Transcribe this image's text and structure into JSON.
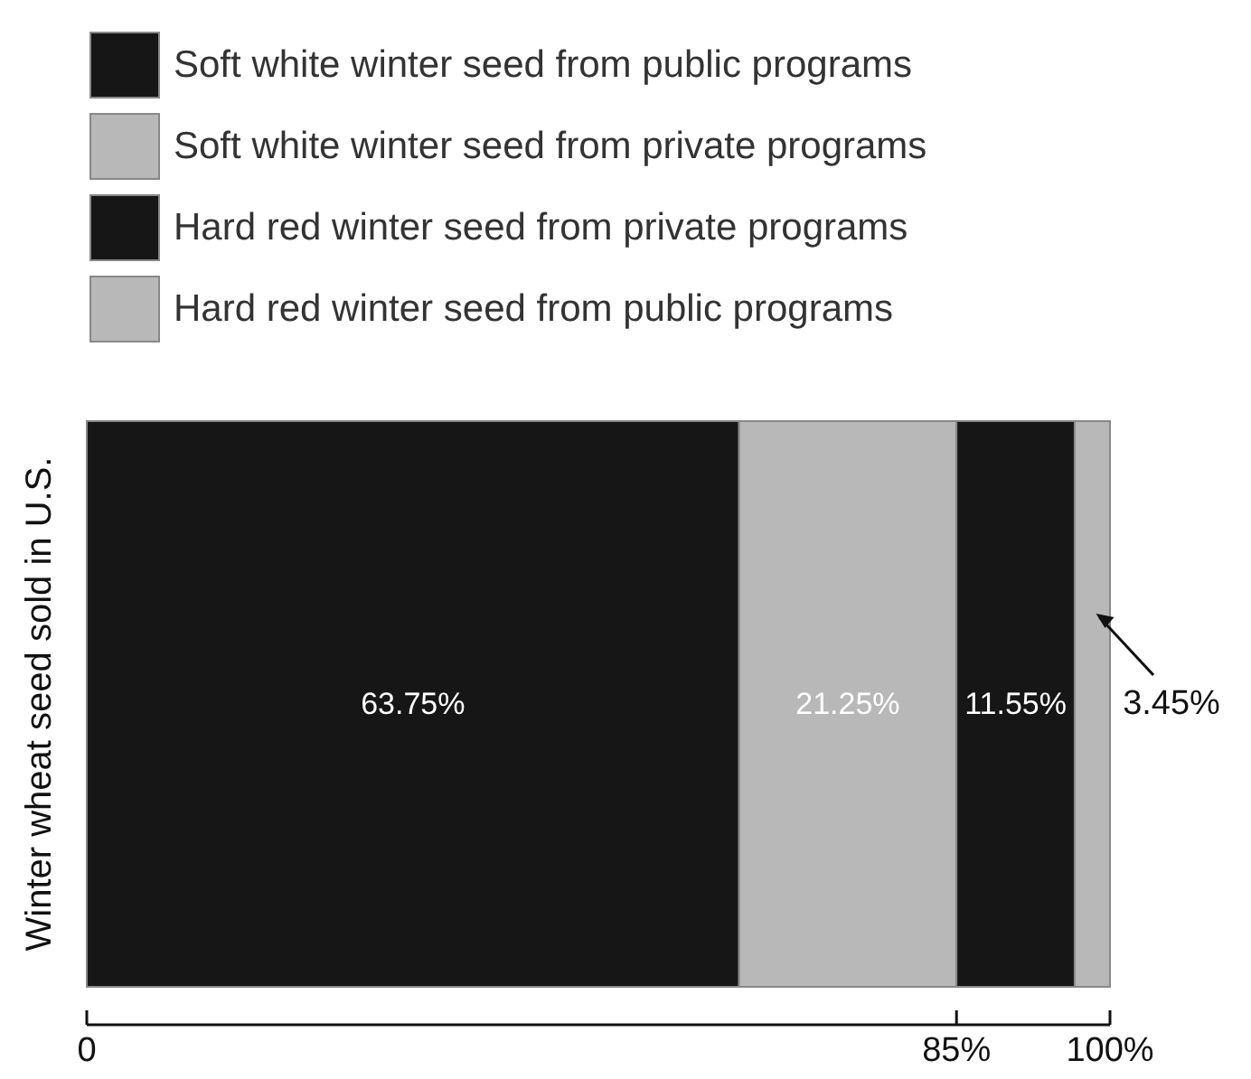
{
  "chart_data": {
    "type": "bar",
    "orientation": "horizontal",
    "stacked": true,
    "ylabel": "Winter wheat seed sold in U.S.",
    "categories": [
      null
    ],
    "series": [
      {
        "name": "Soft white winter seed from public programs",
        "color": "#161616",
        "values": [
          63.75
        ],
        "value_labels": [
          "63.75%"
        ]
      },
      {
        "name": "Soft white winter seed from private programs",
        "color": "#b8b8b8",
        "values": [
          21.25
        ],
        "value_labels": [
          "21.25%"
        ]
      },
      {
        "name": "Hard red winter seed from private programs",
        "color": "#161616",
        "values": [
          11.55
        ],
        "value_labels": [
          "11.55%"
        ]
      },
      {
        "name": "Hard red winter seed from public programs",
        "color": "#b8b8b8",
        "values": [
          3.45
        ],
        "value_labels": [
          "3.45%"
        ]
      }
    ],
    "xlim": [
      0,
      100
    ],
    "xticks": [
      0,
      {
        "value": 85,
        "label": "85%"
      },
      {
        "value": 100,
        "label": "100%"
      }
    ],
    "legend": "top left"
  }
}
